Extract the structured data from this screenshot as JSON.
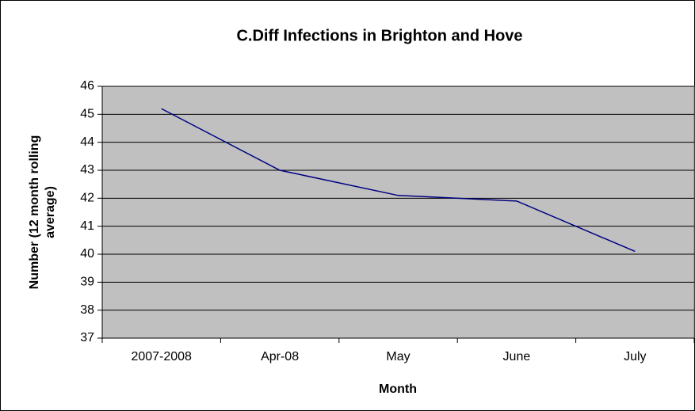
{
  "chart_data": {
    "type": "line",
    "title": "C.Diff Infections in Brighton and Hove",
    "x_label": "Month",
    "y_label": [
      "Number (12 month rolling",
      "average)"
    ],
    "categories": [
      "2007-2008",
      "Apr-08",
      "May",
      "June",
      "July"
    ],
    "series": [
      {
        "name": "Number",
        "color": "#000080",
        "values": [
          45.2,
          43.0,
          42.1,
          41.9,
          40.1
        ]
      }
    ],
    "ylim": [
      37,
      46
    ],
    "yticks": [
      37,
      38,
      39,
      40,
      41,
      42,
      43,
      44,
      45,
      46
    ],
    "grid": true,
    "plot_background": "#c0c0c0"
  }
}
